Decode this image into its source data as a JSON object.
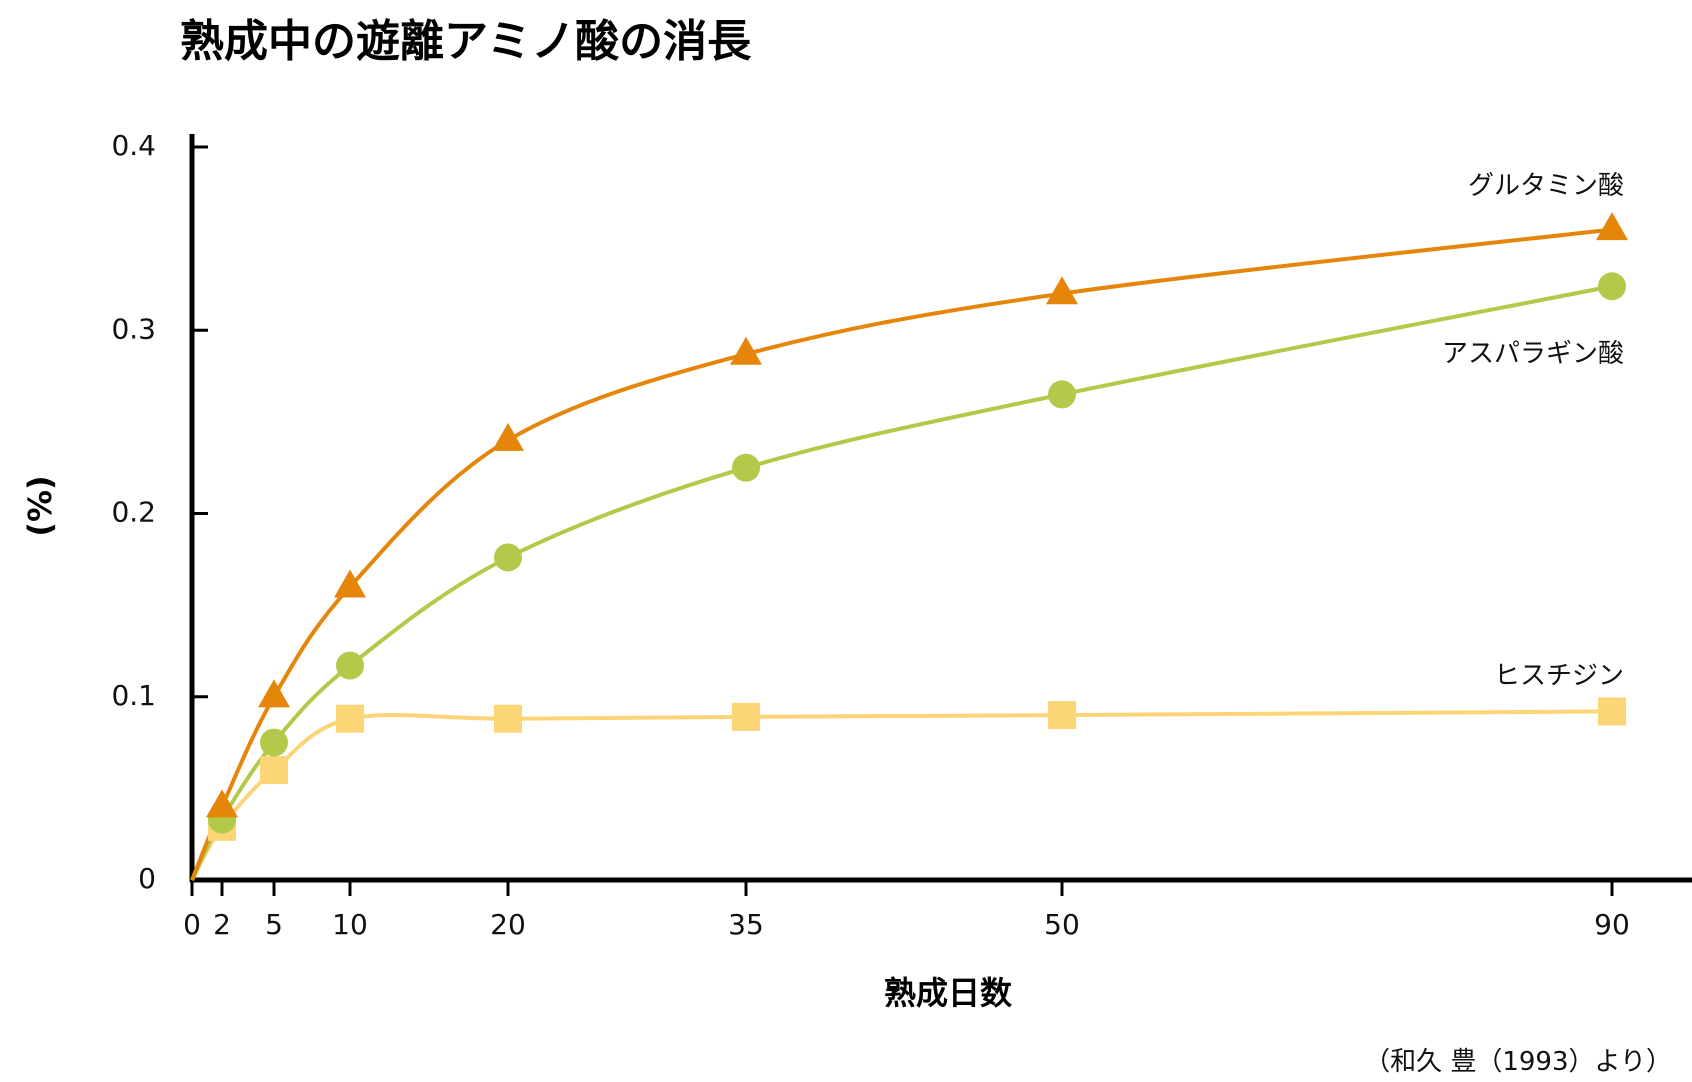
{
  "chart_data": {
    "type": "line",
    "title": "熟成中の遊離アミノ酸の消長",
    "xlabel": "熟成日数",
    "ylabel": "(%)",
    "source": "（和久 豊（1993）より）",
    "x_ticks": [
      0,
      2,
      5,
      10,
      20,
      35,
      50,
      90
    ],
    "y_ticks": [
      0,
      0.1,
      0.2,
      0.3,
      0.4
    ],
    "y_tick_labels": [
      "0",
      "0.1",
      "0.2",
      "0.3",
      "0.4"
    ],
    "ylim": [
      0,
      0.4
    ],
    "grid": false,
    "series": [
      {
        "name": "グルタミン酸",
        "marker": "triangle",
        "color": "#E5860A",
        "x": [
          2,
          5,
          10,
          20,
          35,
          50,
          90
        ],
        "values": [
          0.04,
          0.1,
          0.16,
          0.24,
          0.287,
          0.32,
          0.355
        ]
      },
      {
        "name": "アスパラギン酸",
        "marker": "circle",
        "color": "#B3C94A",
        "x": [
          2,
          5,
          10,
          20,
          35,
          50,
          90
        ],
        "values": [
          0.033,
          0.075,
          0.117,
          0.176,
          0.225,
          0.265,
          0.324
        ]
      },
      {
        "name": "ヒスチジン",
        "marker": "square",
        "color": "#FCD577",
        "x": [
          2,
          5,
          10,
          20,
          35,
          50,
          90
        ],
        "values": [
          0.029,
          0.06,
          0.088,
          0.088,
          0.089,
          0.09,
          0.092
        ]
      }
    ]
  }
}
